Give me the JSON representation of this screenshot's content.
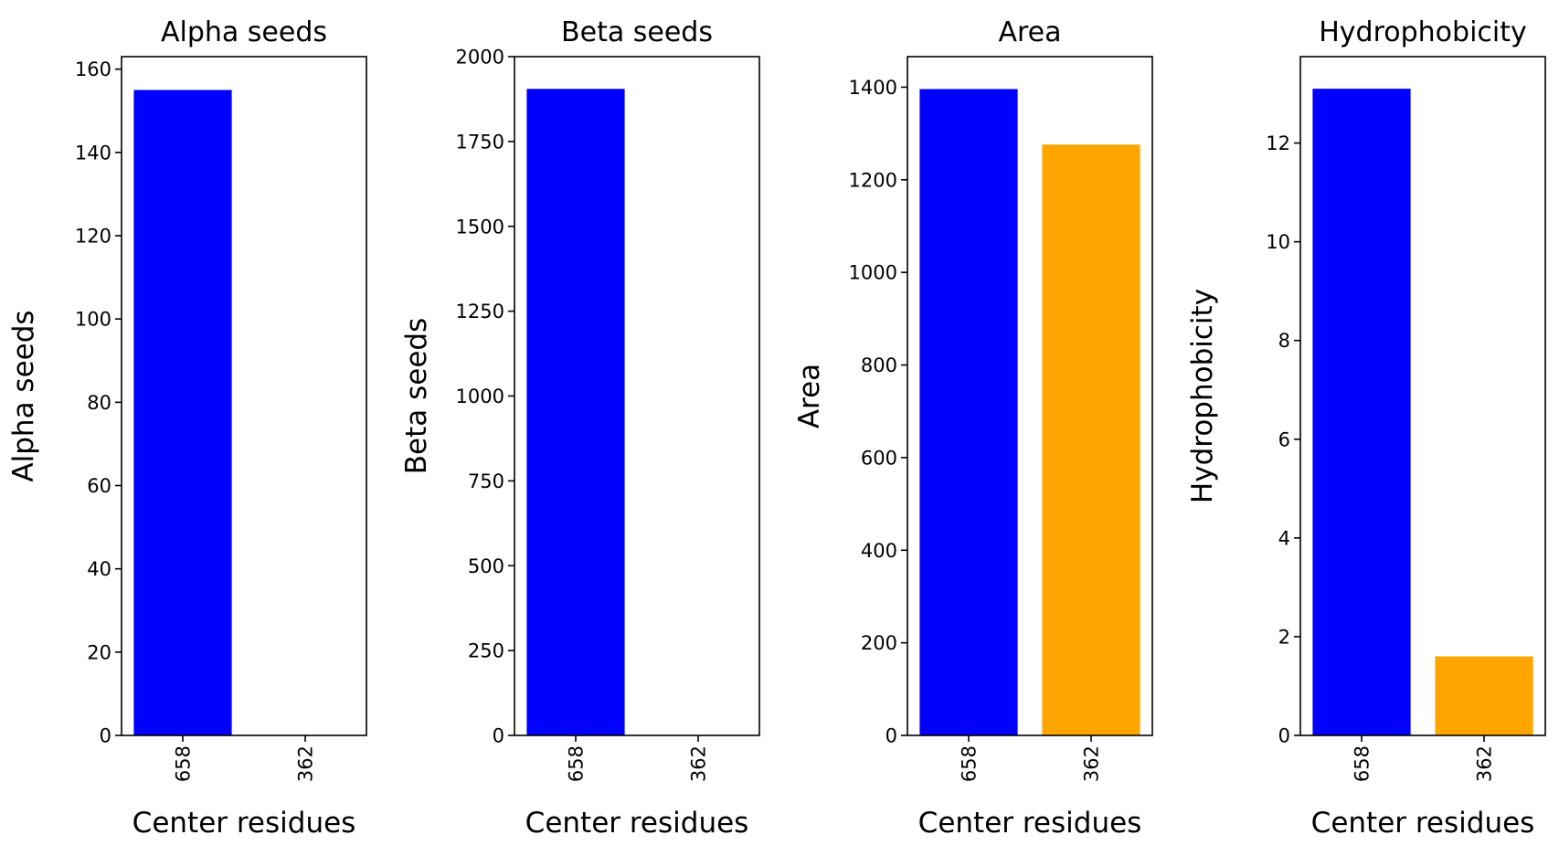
{
  "chart_data": [
    {
      "type": "bar",
      "title": "Alpha seeds",
      "xlabel": "Center residues",
      "ylabel": "Alpha seeds",
      "categories": [
        "658",
        "362"
      ],
      "values": [
        155,
        0
      ],
      "colors": [
        "#0000ff",
        "#ffa500"
      ],
      "ylim": [
        0,
        163
      ],
      "yticks": [
        0,
        20,
        40,
        60,
        80,
        100,
        120,
        140,
        160
      ],
      "grid": false
    },
    {
      "type": "bar",
      "title": "Beta seeds",
      "xlabel": "Center residues",
      "ylabel": "Beta seeds",
      "categories": [
        "658",
        "362"
      ],
      "values": [
        1905,
        0
      ],
      "colors": [
        "#0000ff",
        "#ffa500"
      ],
      "ylim": [
        0,
        2000
      ],
      "yticks": [
        0,
        250,
        500,
        750,
        1000,
        1250,
        1500,
        1750,
        2000
      ],
      "grid": false
    },
    {
      "type": "bar",
      "title": "Area",
      "xlabel": "Center residues",
      "ylabel": "Area",
      "categories": [
        "658",
        "362"
      ],
      "values": [
        1396,
        1276
      ],
      "colors": [
        "#0000ff",
        "#ffa500"
      ],
      "ylim": [
        0,
        1466
      ],
      "yticks": [
        0,
        200,
        400,
        600,
        800,
        1000,
        1200,
        1400
      ],
      "grid": false
    },
    {
      "type": "bar",
      "title": "Hydrophobicity",
      "xlabel": "Center residues",
      "ylabel": "Hydrophobicity",
      "categories": [
        "658",
        "362"
      ],
      "values": [
        13.1,
        1.6
      ],
      "colors": [
        "#0000ff",
        "#ffa500"
      ],
      "ylim": [
        0,
        13.75
      ],
      "yticks": [
        0,
        2,
        4,
        6,
        8,
        10,
        12
      ],
      "grid": false
    }
  ]
}
